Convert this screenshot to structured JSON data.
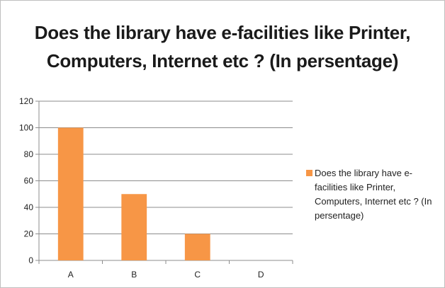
{
  "chart_data": {
    "type": "bar",
    "title": "Does the library have e-facilities like Printer, Computers, Internet etc ? (In persentage)",
    "title_lines": [
      "Does the library have e-facilities like Printer,",
      "Computers, Internet etc ? (In persentage)"
    ],
    "categories": [
      "A",
      "B",
      "C",
      "D"
    ],
    "series": [
      {
        "name": "Does the library have e-facilities like Printer, Computers, Internet etc ? (In persentage)",
        "color": "#f79646",
        "values": [
          100,
          50,
          20,
          0
        ]
      }
    ],
    "ylim": [
      0,
      120
    ],
    "yticks": [
      0,
      20,
      40,
      60,
      80,
      100,
      120
    ],
    "xlabel": "",
    "ylabel": "",
    "grid": true,
    "legend_position": "right"
  }
}
